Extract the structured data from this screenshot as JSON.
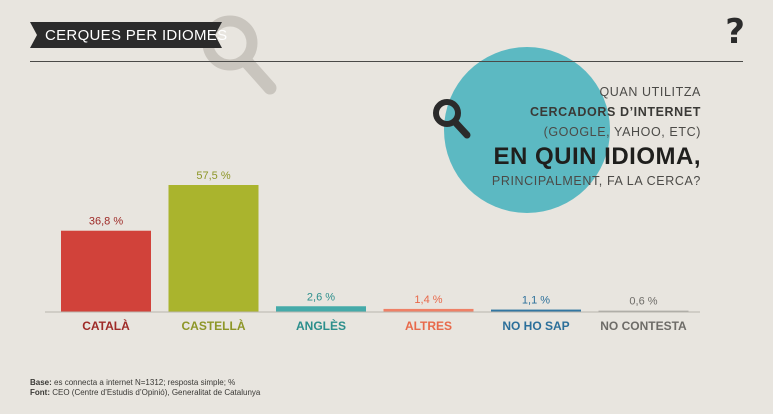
{
  "header": {
    "title": "CERQUES PER IDIOMES",
    "help_icon": "?"
  },
  "question": {
    "line1": "QUAN UTILITZA",
    "line2": "CERCADORS D’INTERNET",
    "line3": "(GOOGLE, YAHOO, ETC)",
    "line4": "EN QUIN IDIOMA,",
    "line5": "PRINCIPALMENT, FA LA CERCA?"
  },
  "footer": {
    "base_label": "Base:",
    "base_text": "es connecta a internet N=1312; resposta simple; %",
    "source_label": "Font:",
    "source_text": "CEO (Centre d’Estudis d’Opinió), Generalitat de Catalunya"
  },
  "colors": {
    "background": "#e8e5df",
    "circle": "#5cb9c2",
    "banner": "#2b2b2b",
    "search_icon_dark": "#2b2b2b",
    "search_icon_faint": "#c9c5be"
  },
  "icons": [
    "search-icon",
    "help-icon"
  ],
  "chart_data": {
    "type": "bar",
    "categories": [
      "CATALÀ",
      "CASTELLÀ",
      "ANGLÈS",
      "ALTRES",
      "NO HO SAP",
      "NO CONTESTA"
    ],
    "values": [
      36.8,
      57.5,
      2.6,
      1.4,
      1.1,
      0.6
    ],
    "value_labels": [
      "36,8 %",
      "57,5 %",
      "2,6 %",
      "1,4 %",
      "1,1 %",
      "0,6 %"
    ],
    "colors": [
      "#d1423a",
      "#aab42d",
      "#45aaa9",
      "#ef8066",
      "#3277a2",
      "#a8a6a1"
    ],
    "label_colors": [
      "#9e2a27",
      "#8d9627",
      "#2c8f8c",
      "#e8694a",
      "#2b6f9a",
      "#6e6c68"
    ],
    "ylim": [
      0,
      60
    ],
    "grid": false
  }
}
